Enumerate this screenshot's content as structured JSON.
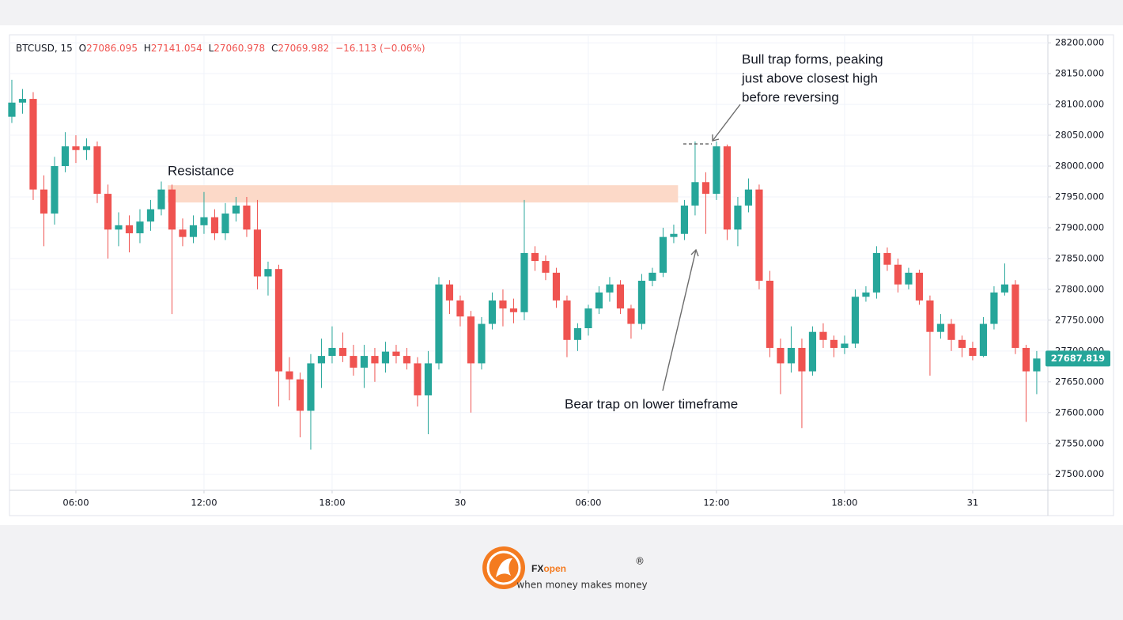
{
  "ticker_header": {
    "symbol": "BTCUSD, 15",
    "open_prefix": "O",
    "open": "27086.095",
    "high_prefix": "H",
    "high": "27141.054",
    "low_prefix": "L",
    "low": "27060.978",
    "close_prefix": "C",
    "close": "27069.982",
    "change": "−16.113 (−0.06%)"
  },
  "chart_data": {
    "type": "candlestick",
    "x": [
      3,
      3.5,
      4,
      4.5,
      5,
      5.5,
      6,
      6.5,
      7,
      7.5,
      8,
      8.5,
      9,
      9.5,
      10,
      10.5,
      11,
      11.5,
      12,
      12.5,
      13,
      13.5,
      14,
      14.5,
      15,
      15.5,
      16,
      16.5,
      17,
      17.5,
      18,
      18.5,
      19,
      19.5,
      20,
      20.5,
      21,
      21.5,
      22,
      22.5,
      23,
      23.5,
      24,
      24.5,
      25,
      25.5,
      26,
      26.5,
      27,
      27.5,
      28,
      28.5,
      29,
      29.5,
      30,
      30.5,
      31,
      31.5,
      32,
      32.5,
      33,
      33.5,
      34,
      34.5,
      35,
      35.5,
      36,
      36.5,
      37,
      37.5,
      38,
      38.5,
      39,
      39.5,
      40,
      40.5,
      41,
      41.5,
      42,
      42.5,
      43,
      43.5,
      44,
      44.5,
      45,
      45.5,
      46,
      46.5,
      47,
      47.5,
      48,
      48.5,
      49,
      49.5,
      50,
      50.5,
      51
    ],
    "open": [
      28080,
      28103,
      28109,
      27962,
      27923,
      28000,
      28032,
      28026,
      28032,
      27955,
      27897,
      27904,
      27891,
      27910,
      27930,
      27962,
      27897,
      27885,
      27904,
      27917,
      27891,
      27923,
      27936,
      27897,
      27821,
      27833,
      27667,
      27654,
      27603,
      27680,
      27692,
      27705,
      27692,
      27673,
      27692,
      27680,
      27699,
      27692,
      27680,
      27628,
      27680,
      27808,
      27782,
      27756,
      27680,
      27744,
      27782,
      27769,
      27763,
      27859,
      27846,
      27827,
      27782,
      27718,
      27737,
      27769,
      27795,
      27808,
      27769,
      27744,
      27814,
      27827,
      27885,
      27890,
      27936,
      27974,
      27955,
      28032,
      27897,
      27936,
      27962,
      27814,
      27705,
      27680,
      27705,
      27667,
      27731,
      27718,
      27705,
      27712,
      27788,
      27795,
      27859,
      27840,
      27808,
      27827,
      27782,
      27731,
      27744,
      27718,
      27705,
      27692,
      27744,
      27795,
      27808,
      27705,
      27667
    ],
    "high": [
      28140,
      28125,
      28120,
      27985,
      28015,
      28055,
      28050,
      28045,
      28040,
      27970,
      27925,
      27920,
      27930,
      27945,
      27975,
      27970,
      27915,
      27920,
      27958,
      27930,
      27940,
      27950,
      27950,
      27945,
      27845,
      27840,
      27690,
      27665,
      27695,
      27720,
      27740,
      27730,
      27710,
      27710,
      27705,
      27715,
      27710,
      27705,
      27690,
      27700,
      27820,
      27815,
      27790,
      27765,
      27755,
      27795,
      27800,
      27785,
      27945,
      27870,
      27855,
      27835,
      27790,
      27745,
      27775,
      27805,
      27820,
      27815,
      27775,
      27825,
      27835,
      27900,
      27905,
      27945,
      28040,
      27990,
      28040,
      28035,
      27950,
      27980,
      27970,
      27830,
      27720,
      27740,
      27720,
      27740,
      27745,
      27725,
      27725,
      27800,
      27805,
      27870,
      27868,
      27850,
      27835,
      27832,
      27790,
      27760,
      27752,
      27725,
      27715,
      27755,
      27805,
      27842,
      27815,
      27710,
      27700
    ],
    "low": [
      28070,
      28085,
      27945,
      27870,
      27905,
      27990,
      28005,
      28010,
      27940,
      27850,
      27870,
      27860,
      27875,
      27895,
      27920,
      27760,
      27870,
      27875,
      27890,
      27880,
      27880,
      27910,
      27885,
      27800,
      27790,
      27610,
      27620,
      27560,
      27540,
      27640,
      27680,
      27682,
      27660,
      27640,
      27650,
      27665,
      27680,
      27670,
      27610,
      27565,
      27670,
      27760,
      27740,
      27600,
      27670,
      27735,
      27740,
      27745,
      27750,
      27830,
      27815,
      27770,
      27690,
      27700,
      27725,
      27760,
      27780,
      27760,
      27720,
      27735,
      27805,
      27820,
      27875,
      27880,
      27920,
      27890,
      27945,
      27880,
      27870,
      27925,
      27800,
      27690,
      27630,
      27665,
      27575,
      27660,
      27705,
      27690,
      27695,
      27705,
      27780,
      27785,
      27830,
      27795,
      27800,
      27775,
      27660,
      27720,
      27700,
      27690,
      27685,
      27690,
      27735,
      27790,
      27695,
      27585,
      27630
    ],
    "close": [
      28103,
      28109,
      27962,
      27923,
      28000,
      28032,
      28026,
      28032,
      27955,
      27897,
      27904,
      27891,
      27910,
      27930,
      27962,
      27897,
      27885,
      27904,
      27917,
      27891,
      27923,
      27936,
      27897,
      27821,
      27833,
      27667,
      27654,
      27603,
      27680,
      27692,
      27705,
      27692,
      27673,
      27692,
      27680,
      27699,
      27692,
      27680,
      27628,
      27680,
      27808,
      27782,
      27756,
      27680,
      27744,
      27782,
      27769,
      27763,
      27859,
      27846,
      27827,
      27782,
      27718,
      27737,
      27769,
      27795,
      27808,
      27769,
      27744,
      27814,
      27827,
      27885,
      27890,
      27936,
      27974,
      27955,
      28032,
      27897,
      27936,
      27962,
      27814,
      27705,
      27680,
      27705,
      27667,
      27731,
      27718,
      27705,
      27712,
      27788,
      27795,
      27859,
      27840,
      27808,
      27827,
      27782,
      27731,
      27744,
      27718,
      27705,
      27692,
      27744,
      27795,
      27808,
      27705,
      27667,
      27687.819
    ],
    "up_color": "#26a69a",
    "down_color": "#ef5350",
    "xlim": [
      2.89,
      51.41
    ],
    "xticks": [
      {
        "value": 6,
        "label": "06:00"
      },
      {
        "value": 12,
        "label": "12:00"
      },
      {
        "value": 18,
        "label": "18:00"
      },
      {
        "value": 24,
        "label": "30"
      },
      {
        "value": 30,
        "label": "06:00"
      },
      {
        "value": 36,
        "label": "12:00"
      },
      {
        "value": 42,
        "label": "18:00"
      },
      {
        "value": 48,
        "label": "31"
      }
    ],
    "ylim": [
      27474,
      28213
    ],
    "yticks": [
      {
        "value": 27500,
        "label": "27500.000"
      },
      {
        "value": 27550,
        "label": "27550.000"
      },
      {
        "value": 27600,
        "label": "27600.000"
      },
      {
        "value": 27650,
        "label": "27650.000"
      },
      {
        "value": 27700,
        "label": "27700.000"
      },
      {
        "value": 27750,
        "label": "27750.000"
      },
      {
        "value": 27800,
        "label": "27800.000"
      },
      {
        "value": 27850,
        "label": "27850.000"
      },
      {
        "value": 27900,
        "label": "27900.000"
      },
      {
        "value": 27950,
        "label": "27950.000"
      },
      {
        "value": 28000,
        "label": "28000.000"
      },
      {
        "value": 28050,
        "label": "28050.000"
      },
      {
        "value": 28100,
        "label": "28100.000"
      },
      {
        "value": 28150,
        "label": "28150.000"
      },
      {
        "value": 28200,
        "label": "28200.000"
      }
    ],
    "grid": true,
    "resistance_zone": {
      "label": "Resistance",
      "x": [
        10.3,
        34.2
      ],
      "y": [
        27941,
        27969
      ],
      "color": "#fcd9c8"
    },
    "bull_trap_note": [
      "Bull trap forms, peaking",
      "just above closest high",
      "before reversing"
    ],
    "bear_trap_note": "Bear trap on lower timeframe"
  },
  "footer": {
    "brand_dark": "FX",
    "brand_orange": "open",
    "mark": "®",
    "tagline": "when money makes money"
  }
}
